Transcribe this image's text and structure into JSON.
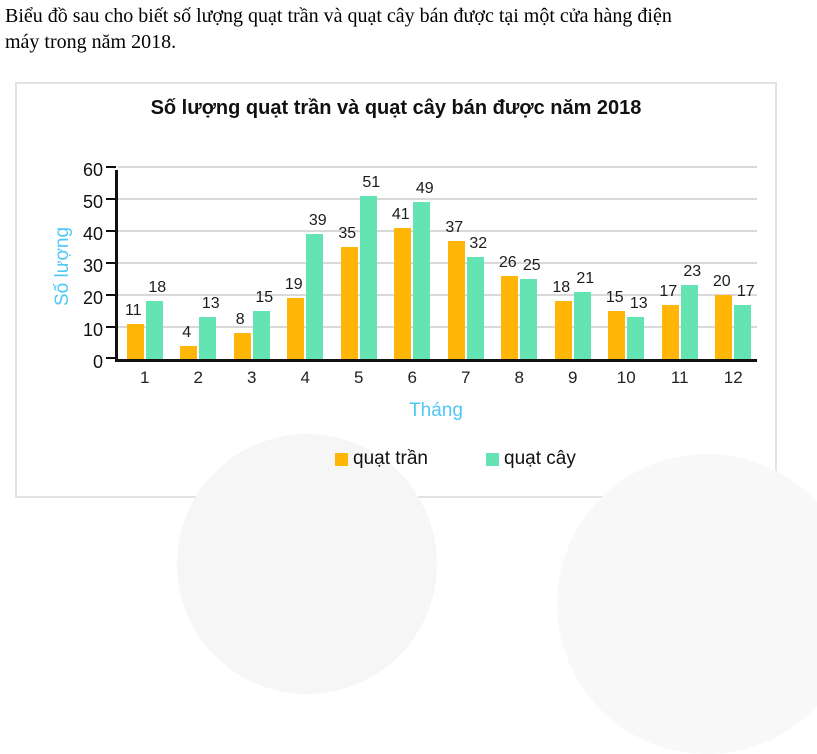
{
  "intro": {
    "lines": [
      "Biểu đồ sau cho biết số lượng quạt trần và quạt cây bán được tại một cửa hàng điện",
      "máy trong năm 2018."
    ]
  },
  "chart_data": {
    "type": "bar",
    "title": "Số lượng quạt trần và quạt cây bán được năm 2018",
    "categories": [
      "1",
      "2",
      "3",
      "4",
      "5",
      "6",
      "7",
      "8",
      "9",
      "10",
      "11",
      "12"
    ],
    "series": [
      {
        "name": "quạt trần",
        "color": "#FFB606",
        "values": [
          11,
          4,
          8,
          19,
          35,
          41,
          37,
          26,
          18,
          15,
          17,
          20
        ]
      },
      {
        "name": "quạt cây",
        "color": "#63E4B2",
        "values": [
          18,
          13,
          15,
          39,
          51,
          49,
          32,
          25,
          21,
          13,
          23,
          17
        ]
      }
    ],
    "xlabel": "Tháng",
    "ylabel": "Số lượng",
    "ylim": [
      0,
      60
    ],
    "yticks": [
      0,
      10,
      20,
      30,
      40,
      50,
      60
    ],
    "grid": true,
    "legend_position": "bottom",
    "axis_label_color": "#4FC8F6",
    "gridline_color": "#d9d9d9",
    "axis_line_color": "#111111",
    "value_labels_shown": true
  }
}
